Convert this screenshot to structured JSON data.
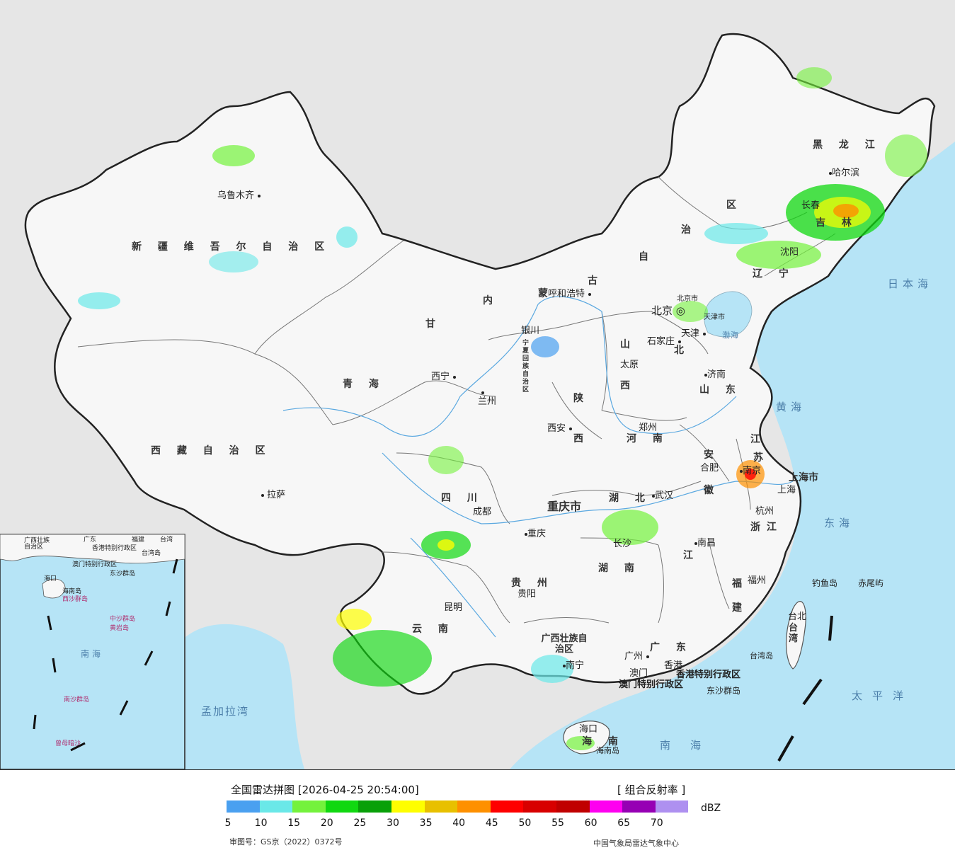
{
  "map": {
    "provinces": [
      {
        "name": "新疆维吾尔自治区",
        "label": "新 疆 维 吾 尔 自 治 区"
      },
      {
        "name": "西藏自治区",
        "label": "西 藏 自 治 区"
      },
      {
        "name": "青海",
        "label": "青    海"
      },
      {
        "name": "甘肃",
        "label": "甘"
      },
      {
        "name": "内蒙古",
        "label": "内"
      },
      {
        "name": "四川",
        "label": "四    川"
      },
      {
        "name": "云南",
        "label": "云    南"
      },
      {
        "name": "贵州",
        "label": "贵    州"
      },
      {
        "name": "湖南",
        "label": "湖    南"
      },
      {
        "name": "湖北",
        "label": "湖    北"
      },
      {
        "name": "江西",
        "label": "江"
      },
      {
        "name": "山西",
        "label": "山"
      },
      {
        "name": "陕西",
        "label": "陕"
      },
      {
        "name": "河南",
        "label": "河    南"
      },
      {
        "name": "山东",
        "label": "山    东"
      },
      {
        "name": "安徽",
        "label": "安"
      },
      {
        "name": "黑龙江",
        "label": "黑    龙    江"
      },
      {
        "name": "吉林",
        "label": "吉    林"
      },
      {
        "name": "辽宁",
        "label": "辽    宁"
      },
      {
        "name": "重庆市",
        "label": "重庆市"
      },
      {
        "name": "广西壮族自治区",
        "label": "广西壮族自治区"
      },
      {
        "name": "广东",
        "label": "广    东"
      },
      {
        "name": "海南",
        "label": "海    南"
      },
      {
        "name": "福建",
        "label": "福"
      },
      {
        "name": "浙江",
        "label": "浙  江"
      },
      {
        "name": "江苏",
        "label": "江"
      },
      {
        "name": "台湾",
        "label": "台湾"
      },
      {
        "name": "上海市",
        "label": "上海市"
      }
    ],
    "extra_region_text": [
      "蒙",
      "古",
      "自",
      "治",
      "区",
      "北",
      "西",
      "徽",
      "苏",
      "建",
      "西",
      "宁夏回族自治区"
    ],
    "cities": [
      "乌鲁木齐",
      "拉萨",
      "西宁",
      "兰州",
      "银川",
      "呼和浩特",
      "北京",
      "天津",
      "石家庄",
      "太原",
      "济南",
      "郑州",
      "西安",
      "成都",
      "重庆",
      "武汉",
      "合肥",
      "南京",
      "上海",
      "杭州",
      "长沙",
      "南昌",
      "福州",
      "台北",
      "贵阳",
      "昆明",
      "南宁",
      "广州",
      "香港",
      "澳门",
      "海口",
      "哈尔滨",
      "长春",
      "沈阳"
    ],
    "special_labels": [
      "香港特别行政区",
      "澳门特别行政区",
      "东沙群岛",
      "台湾岛",
      "海南岛",
      "钓鱼岛",
      "赤尾屿",
      "北京市",
      "天津市"
    ],
    "seas": [
      "日本海",
      "黄海",
      "东海",
      "太平洋",
      "南海",
      "孟加拉湾",
      "渤海"
    ],
    "inset": {
      "labels": [
        "广西壮族自治区",
        "广东",
        "海口",
        "海南岛",
        "西沙群岛",
        "中沙群岛",
        "黄岩岛",
        "南海",
        "南沙群岛",
        "曾母暗沙",
        "东沙群岛",
        "台湾岛",
        "香港特别行政区",
        "澳门特别行政区",
        "福建",
        "台湾"
      ]
    }
  },
  "legend": {
    "title": "全国雷达拼图 [2026-04-25 20:54:00]",
    "product": "[ 组合反射率 ]",
    "unit": "dBZ",
    "colors": [
      "#4aa0f0",
      "#6ae8e8",
      "#74f23c",
      "#10d810",
      "#08a008",
      "#fefe00",
      "#e8c000",
      "#fe9000",
      "#fe0000",
      "#d80000",
      "#c00000",
      "#fe00f0",
      "#9600b4",
      "#ae90f0"
    ],
    "ticks": [
      "5",
      "10",
      "15",
      "20",
      "25",
      "30",
      "35",
      "40",
      "45",
      "50",
      "55",
      "60",
      "65",
      "70"
    ],
    "approval": "审图号：GS京（2022）0372号",
    "source": "中国气象局雷达气象中心"
  }
}
